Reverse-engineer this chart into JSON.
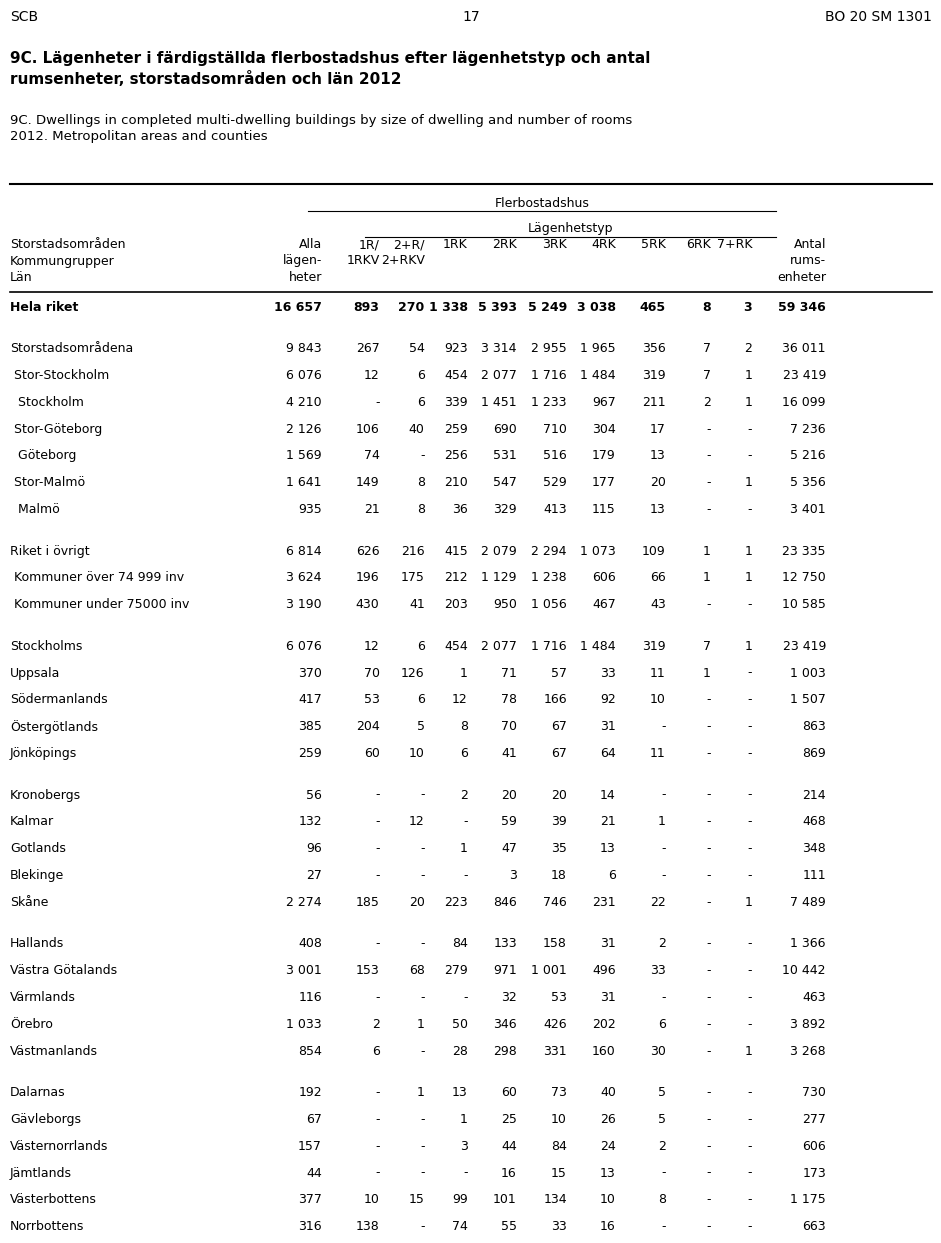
{
  "header_line1": "SCB",
  "header_center": "17",
  "header_right": "BO 20 SM 1301",
  "title_sv": "9C. Lägenheter i färdigställda flerbostadshus efter lägenhetstyp och antal\nrumsenheter, storstadsområden och län 2012",
  "title_en": "9C. Dwellings in completed multi-dwelling buildings by size of dwelling and number of rooms\n2012. Metropolitan areas and counties",
  "flerbostadshus_label": "Flerbostadshus",
  "lagenhetstyp_label": "Lägenhetstyp",
  "col_headers": [
    "Alla\nlägen-\nheter",
    "1R/\n1RKV",
    "2+R/\n2+RKV",
    "1RK",
    "2RK",
    "3RK",
    "4RK",
    "5RK",
    "6RK",
    "7+RK",
    "Antal\nrums-\nenheter"
  ],
  "row_label_col": "Storstadsområden\nKommungrupper\nLän",
  "rows": [
    {
      "label": "Hela riket",
      "indent": 0,
      "bold": true,
      "group_before": true,
      "values": [
        "16 657",
        "893",
        "270",
        "1 338",
        "5 393",
        "5 249",
        "3 038",
        "465",
        "8",
        "3",
        "59 346"
      ]
    },
    {
      "label": "Storstadsområdena",
      "indent": 0,
      "bold": false,
      "group_before": true,
      "values": [
        "9 843",
        "267",
        "54",
        "923",
        "3 314",
        "2 955",
        "1 965",
        "356",
        "7",
        "2",
        "36 011"
      ]
    },
    {
      "label": " Stor-Stockholm",
      "indent": 1,
      "bold": false,
      "group_before": false,
      "values": [
        "6 076",
        "12",
        "6",
        "454",
        "2 077",
        "1 716",
        "1 484",
        "319",
        "7",
        "1",
        "23 419"
      ]
    },
    {
      "label": "  Stockholm",
      "indent": 2,
      "bold": false,
      "group_before": false,
      "values": [
        "4 210",
        "-",
        "6",
        "339",
        "1 451",
        "1 233",
        "967",
        "211",
        "2",
        "1",
        "16 099"
      ]
    },
    {
      "label": " Stor-Göteborg",
      "indent": 1,
      "bold": false,
      "group_before": false,
      "values": [
        "2 126",
        "106",
        "40",
        "259",
        "690",
        "710",
        "304",
        "17",
        "-",
        "-",
        "7 236"
      ]
    },
    {
      "label": "  Göteborg",
      "indent": 2,
      "bold": false,
      "group_before": false,
      "values": [
        "1 569",
        "74",
        "-",
        "256",
        "531",
        "516",
        "179",
        "13",
        "-",
        "-",
        "5 216"
      ]
    },
    {
      "label": " Stor-Malmö",
      "indent": 1,
      "bold": false,
      "group_before": false,
      "values": [
        "1 641",
        "149",
        "8",
        "210",
        "547",
        "529",
        "177",
        "20",
        "-",
        "1",
        "5 356"
      ]
    },
    {
      "label": "  Malmö",
      "indent": 2,
      "bold": false,
      "group_before": false,
      "values": [
        "935",
        "21",
        "8",
        "36",
        "329",
        "413",
        "115",
        "13",
        "-",
        "-",
        "3 401"
      ]
    },
    {
      "label": "Riket i övrigt",
      "indent": 0,
      "bold": false,
      "group_before": true,
      "values": [
        "6 814",
        "626",
        "216",
        "415",
        "2 079",
        "2 294",
        "1 073",
        "109",
        "1",
        "1",
        "23 335"
      ]
    },
    {
      "label": " Kommuner över 74 999 inv",
      "indent": 1,
      "bold": false,
      "group_before": false,
      "values": [
        "3 624",
        "196",
        "175",
        "212",
        "1 129",
        "1 238",
        "606",
        "66",
        "1",
        "1",
        "12 750"
      ]
    },
    {
      "label": " Kommuner under 75000 inv",
      "indent": 1,
      "bold": false,
      "group_before": false,
      "values": [
        "3 190",
        "430",
        "41",
        "203",
        "950",
        "1 056",
        "467",
        "43",
        "-",
        "-",
        "10 585"
      ]
    },
    {
      "label": "Stockholms",
      "indent": 0,
      "bold": false,
      "group_before": true,
      "values": [
        "6 076",
        "12",
        "6",
        "454",
        "2 077",
        "1 716",
        "1 484",
        "319",
        "7",
        "1",
        "23 419"
      ]
    },
    {
      "label": "Uppsala",
      "indent": 0,
      "bold": false,
      "group_before": false,
      "values": [
        "370",
        "70",
        "126",
        "1",
        "71",
        "57",
        "33",
        "11",
        "1",
        "-",
        "1 003"
      ]
    },
    {
      "label": "Södermanlands",
      "indent": 0,
      "bold": false,
      "group_before": false,
      "values": [
        "417",
        "53",
        "6",
        "12",
        "78",
        "166",
        "92",
        "10",
        "-",
        "-",
        "1 507"
      ]
    },
    {
      "label": "Östergötlands",
      "indent": 0,
      "bold": false,
      "group_before": false,
      "values": [
        "385",
        "204",
        "5",
        "8",
        "70",
        "67",
        "31",
        "-",
        "-",
        "-",
        "863"
      ]
    },
    {
      "label": "Jönköpings",
      "indent": 0,
      "bold": false,
      "group_before": false,
      "values": [
        "259",
        "60",
        "10",
        "6",
        "41",
        "67",
        "64",
        "11",
        "-",
        "-",
        "869"
      ]
    },
    {
      "label": "Kronobergs",
      "indent": 0,
      "bold": false,
      "group_before": true,
      "values": [
        "56",
        "-",
        "-",
        "2",
        "20",
        "20",
        "14",
        "-",
        "-",
        "-",
        "214"
      ]
    },
    {
      "label": "Kalmar",
      "indent": 0,
      "bold": false,
      "group_before": false,
      "values": [
        "132",
        "-",
        "12",
        "-",
        "59",
        "39",
        "21",
        "1",
        "-",
        "-",
        "468"
      ]
    },
    {
      "label": "Gotlands",
      "indent": 0,
      "bold": false,
      "group_before": false,
      "values": [
        "96",
        "-",
        "-",
        "1",
        "47",
        "35",
        "13",
        "-",
        "-",
        "-",
        "348"
      ]
    },
    {
      "label": "Blekinge",
      "indent": 0,
      "bold": false,
      "group_before": false,
      "values": [
        "27",
        "-",
        "-",
        "-",
        "3",
        "18",
        "6",
        "-",
        "-",
        "-",
        "111"
      ]
    },
    {
      "label": "Skåne",
      "indent": 0,
      "bold": false,
      "group_before": false,
      "values": [
        "2 274",
        "185",
        "20",
        "223",
        "846",
        "746",
        "231",
        "22",
        "-",
        "1",
        "7 489"
      ]
    },
    {
      "label": "Hallands",
      "indent": 0,
      "bold": false,
      "group_before": true,
      "values": [
        "408",
        "-",
        "-",
        "84",
        "133",
        "158",
        "31",
        "2",
        "-",
        "-",
        "1 366"
      ]
    },
    {
      "label": "Västra Götalands",
      "indent": 0,
      "bold": false,
      "group_before": false,
      "values": [
        "3 001",
        "153",
        "68",
        "279",
        "971",
        "1 001",
        "496",
        "33",
        "-",
        "-",
        "10 442"
      ]
    },
    {
      "label": "Värmlands",
      "indent": 0,
      "bold": false,
      "group_before": false,
      "values": [
        "116",
        "-",
        "-",
        "-",
        "32",
        "53",
        "31",
        "-",
        "-",
        "-",
        "463"
      ]
    },
    {
      "label": "Örebro",
      "indent": 0,
      "bold": false,
      "group_before": false,
      "values": [
        "1 033",
        "2",
        "1",
        "50",
        "346",
        "426",
        "202",
        "6",
        "-",
        "-",
        "3 892"
      ]
    },
    {
      "label": "Västmanlands",
      "indent": 0,
      "bold": false,
      "group_before": false,
      "values": [
        "854",
        "6",
        "-",
        "28",
        "298",
        "331",
        "160",
        "30",
        "-",
        "1",
        "3 268"
      ]
    },
    {
      "label": "Dalarnas",
      "indent": 0,
      "bold": false,
      "group_before": true,
      "values": [
        "192",
        "-",
        "1",
        "13",
        "60",
        "73",
        "40",
        "5",
        "-",
        "-",
        "730"
      ]
    },
    {
      "label": "Gävleborgs",
      "indent": 0,
      "bold": false,
      "group_before": false,
      "values": [
        "67",
        "-",
        "-",
        "1",
        "25",
        "10",
        "26",
        "5",
        "-",
        "-",
        "277"
      ]
    },
    {
      "label": "Västernorrlands",
      "indent": 0,
      "bold": false,
      "group_before": false,
      "values": [
        "157",
        "-",
        "-",
        "3",
        "44",
        "84",
        "24",
        "2",
        "-",
        "-",
        "606"
      ]
    },
    {
      "label": "Jämtlands",
      "indent": 0,
      "bold": false,
      "group_before": false,
      "values": [
        "44",
        "-",
        "-",
        "-",
        "16",
        "15",
        "13",
        "-",
        "-",
        "-",
        "173"
      ]
    },
    {
      "label": "Västerbottens",
      "indent": 0,
      "bold": false,
      "group_before": false,
      "values": [
        "377",
        "10",
        "15",
        "99",
        "101",
        "134",
        "10",
        "8",
        "-",
        "-",
        "1 175"
      ]
    },
    {
      "label": "Norrbottens",
      "indent": 0,
      "bold": false,
      "group_before": false,
      "values": [
        "316",
        "138",
        "-",
        "74",
        "55",
        "33",
        "16",
        "-",
        "-",
        "-",
        "663"
      ]
    }
  ]
}
